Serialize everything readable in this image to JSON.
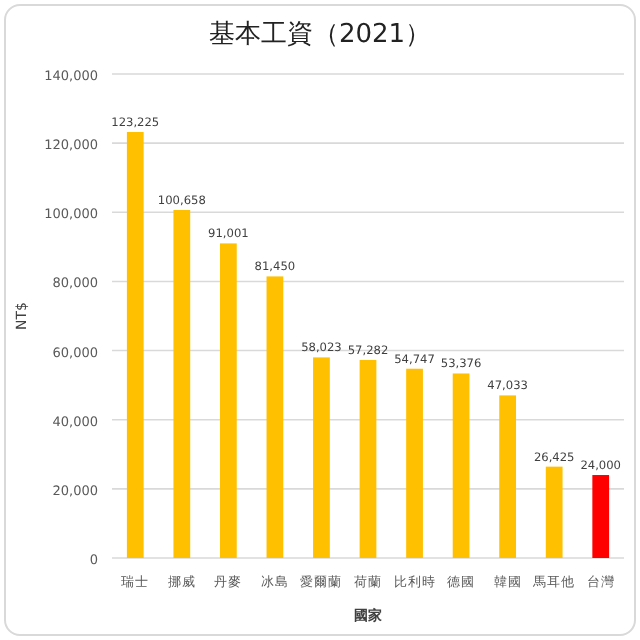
{
  "chart_data": {
    "type": "bar",
    "title": "基本工資（2021）",
    "xlabel": "國家",
    "ylabel": "NT$",
    "categories": [
      "瑞士",
      "挪威",
      "丹麥",
      "冰島",
      "愛爾蘭",
      "荷蘭",
      "比利時",
      "德國",
      "韓國",
      "馬耳他",
      "台灣"
    ],
    "values": [
      123225,
      100658,
      91001,
      81450,
      58023,
      57282,
      54747,
      53376,
      47033,
      26425,
      24000
    ],
    "value_labels": [
      "123,225",
      "100,658",
      "91,001",
      "81,450",
      "58,023",
      "57,282",
      "54,747",
      "53,376",
      "47,033",
      "26,425",
      "24,000"
    ],
    "colors": [
      "#ffc000",
      "#ffc000",
      "#ffc000",
      "#ffc000",
      "#ffc000",
      "#ffc000",
      "#ffc000",
      "#ffc000",
      "#ffc000",
      "#ffc000",
      "#ff0000"
    ],
    "ylim": [
      0,
      140000
    ],
    "yticks": [
      {
        "value": 0,
        "label": "0"
      },
      {
        "value": 20000,
        "label": "20,000"
      },
      {
        "value": 40000,
        "label": "40,000"
      },
      {
        "value": 60000,
        "label": "60,000"
      },
      {
        "value": 80000,
        "label": "80,000"
      },
      {
        "value": 100000,
        "label": "100,000"
      },
      {
        "value": 120000,
        "label": "120,000"
      },
      {
        "value": 140000,
        "label": "140,000"
      }
    ],
    "grid": "y"
  }
}
